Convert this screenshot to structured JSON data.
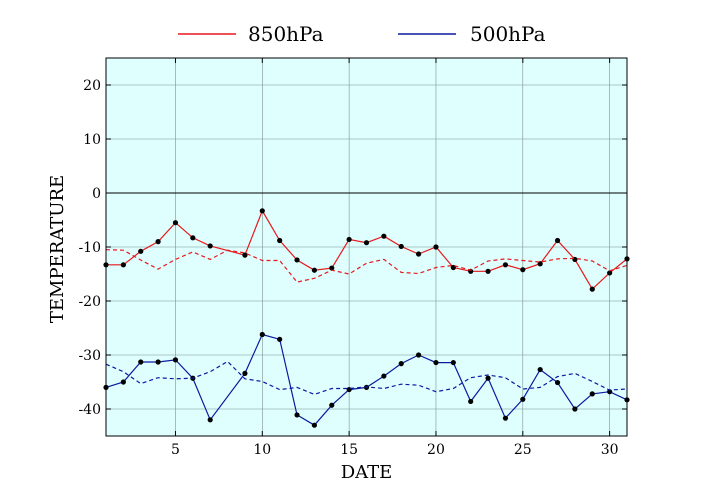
{
  "chart_data": {
    "type": "line",
    "title": "",
    "xlabel": "DATE",
    "ylabel": "TEMPERATURE",
    "xlim": [
      1,
      31
    ],
    "ylim": [
      -45,
      25
    ],
    "xticks": [
      5,
      10,
      15,
      20,
      25,
      30
    ],
    "yticks": [
      20,
      10,
      0,
      -10,
      -20,
      -30,
      -40
    ],
    "grid": true,
    "background_color": "#dfffff",
    "zero_line": true,
    "legend_position": "top-center",
    "x": [
      1,
      2,
      3,
      4,
      5,
      6,
      7,
      8,
      9,
      10,
      11,
      12,
      13,
      14,
      15,
      16,
      17,
      18,
      19,
      20,
      21,
      22,
      23,
      24,
      25,
      26,
      27,
      28,
      29,
      30,
      31
    ],
    "series": [
      {
        "name": "850hPa",
        "color": "#e8191c",
        "style": "solid",
        "markers": true,
        "x": [
          1,
          2,
          3,
          4,
          5,
          6,
          7,
          9,
          10,
          11,
          12,
          13,
          14,
          15,
          16,
          17,
          18,
          19,
          20,
          21,
          22,
          23,
          24,
          25,
          26,
          27,
          28,
          29,
          30,
          31
        ],
        "values": [
          -13.3,
          -13.3,
          -10.8,
          -9.0,
          -5.5,
          -8.3,
          -9.8,
          -11.5,
          -3.3,
          -8.8,
          -12.4,
          -14.3,
          -13.9,
          -8.6,
          -9.2,
          -8.0,
          -9.9,
          -11.3,
          -10.0,
          -13.8,
          -14.5,
          -14.5,
          -13.3,
          -14.2,
          -13.1,
          -8.8,
          -12.3,
          -17.8,
          -14.8,
          -12.2
        ]
      },
      {
        "name": "500hPa",
        "color": "#0c1aa0",
        "style": "solid",
        "markers": true,
        "x": [
          1,
          2,
          3,
          4,
          5,
          6,
          7,
          9,
          10,
          11,
          12,
          13,
          14,
          15,
          16,
          17,
          18,
          19,
          20,
          21,
          22,
          23,
          24,
          25,
          26,
          27,
          28,
          29,
          30,
          31
        ],
        "values": [
          -36.0,
          -35.0,
          -31.3,
          -31.3,
          -30.9,
          -34.3,
          -42.0,
          -33.4,
          -26.2,
          -27.1,
          -41.1,
          -43.0,
          -39.3,
          -36.4,
          -36.0,
          -33.9,
          -31.6,
          -30.0,
          -31.4,
          -31.4,
          -38.6,
          -34.3,
          -41.7,
          -38.2,
          -32.7,
          -35.1,
          -40.0,
          -37.2,
          -36.8,
          -38.3
        ]
      },
      {
        "name": "",
        "color": "#e8191c",
        "style": "dashed",
        "markers": false,
        "values": [
          -10.5,
          -10.6,
          -12.4,
          -14.1,
          -12.3,
          -10.9,
          -12.3,
          -10.6,
          -11.1,
          -12.5,
          -12.5,
          -16.5,
          -15.8,
          -14.3,
          -15.0,
          -13.0,
          -12.3,
          -14.7,
          -14.9,
          -13.8,
          -13.4,
          -14.3,
          -12.6,
          -12.2,
          -12.5,
          -12.8,
          -12.2,
          -12.1,
          -12.6,
          -14.4,
          -13.4
        ]
      },
      {
        "name": "",
        "color": "#0c1aa0",
        "style": "dashed",
        "markers": false,
        "values": [
          -31.7,
          -33.1,
          -35.3,
          -34.2,
          -34.4,
          -34.3,
          -33.1,
          -31.2,
          -34.4,
          -34.9,
          -36.4,
          -36.0,
          -37.3,
          -36.2,
          -36.2,
          -35.9,
          -36.2,
          -35.4,
          -35.6,
          -36.8,
          -36.2,
          -34.2,
          -33.7,
          -34.2,
          -36.3,
          -36.0,
          -34.0,
          -33.4,
          -34.9,
          -36.5,
          -36.3
        ]
      }
    ]
  }
}
